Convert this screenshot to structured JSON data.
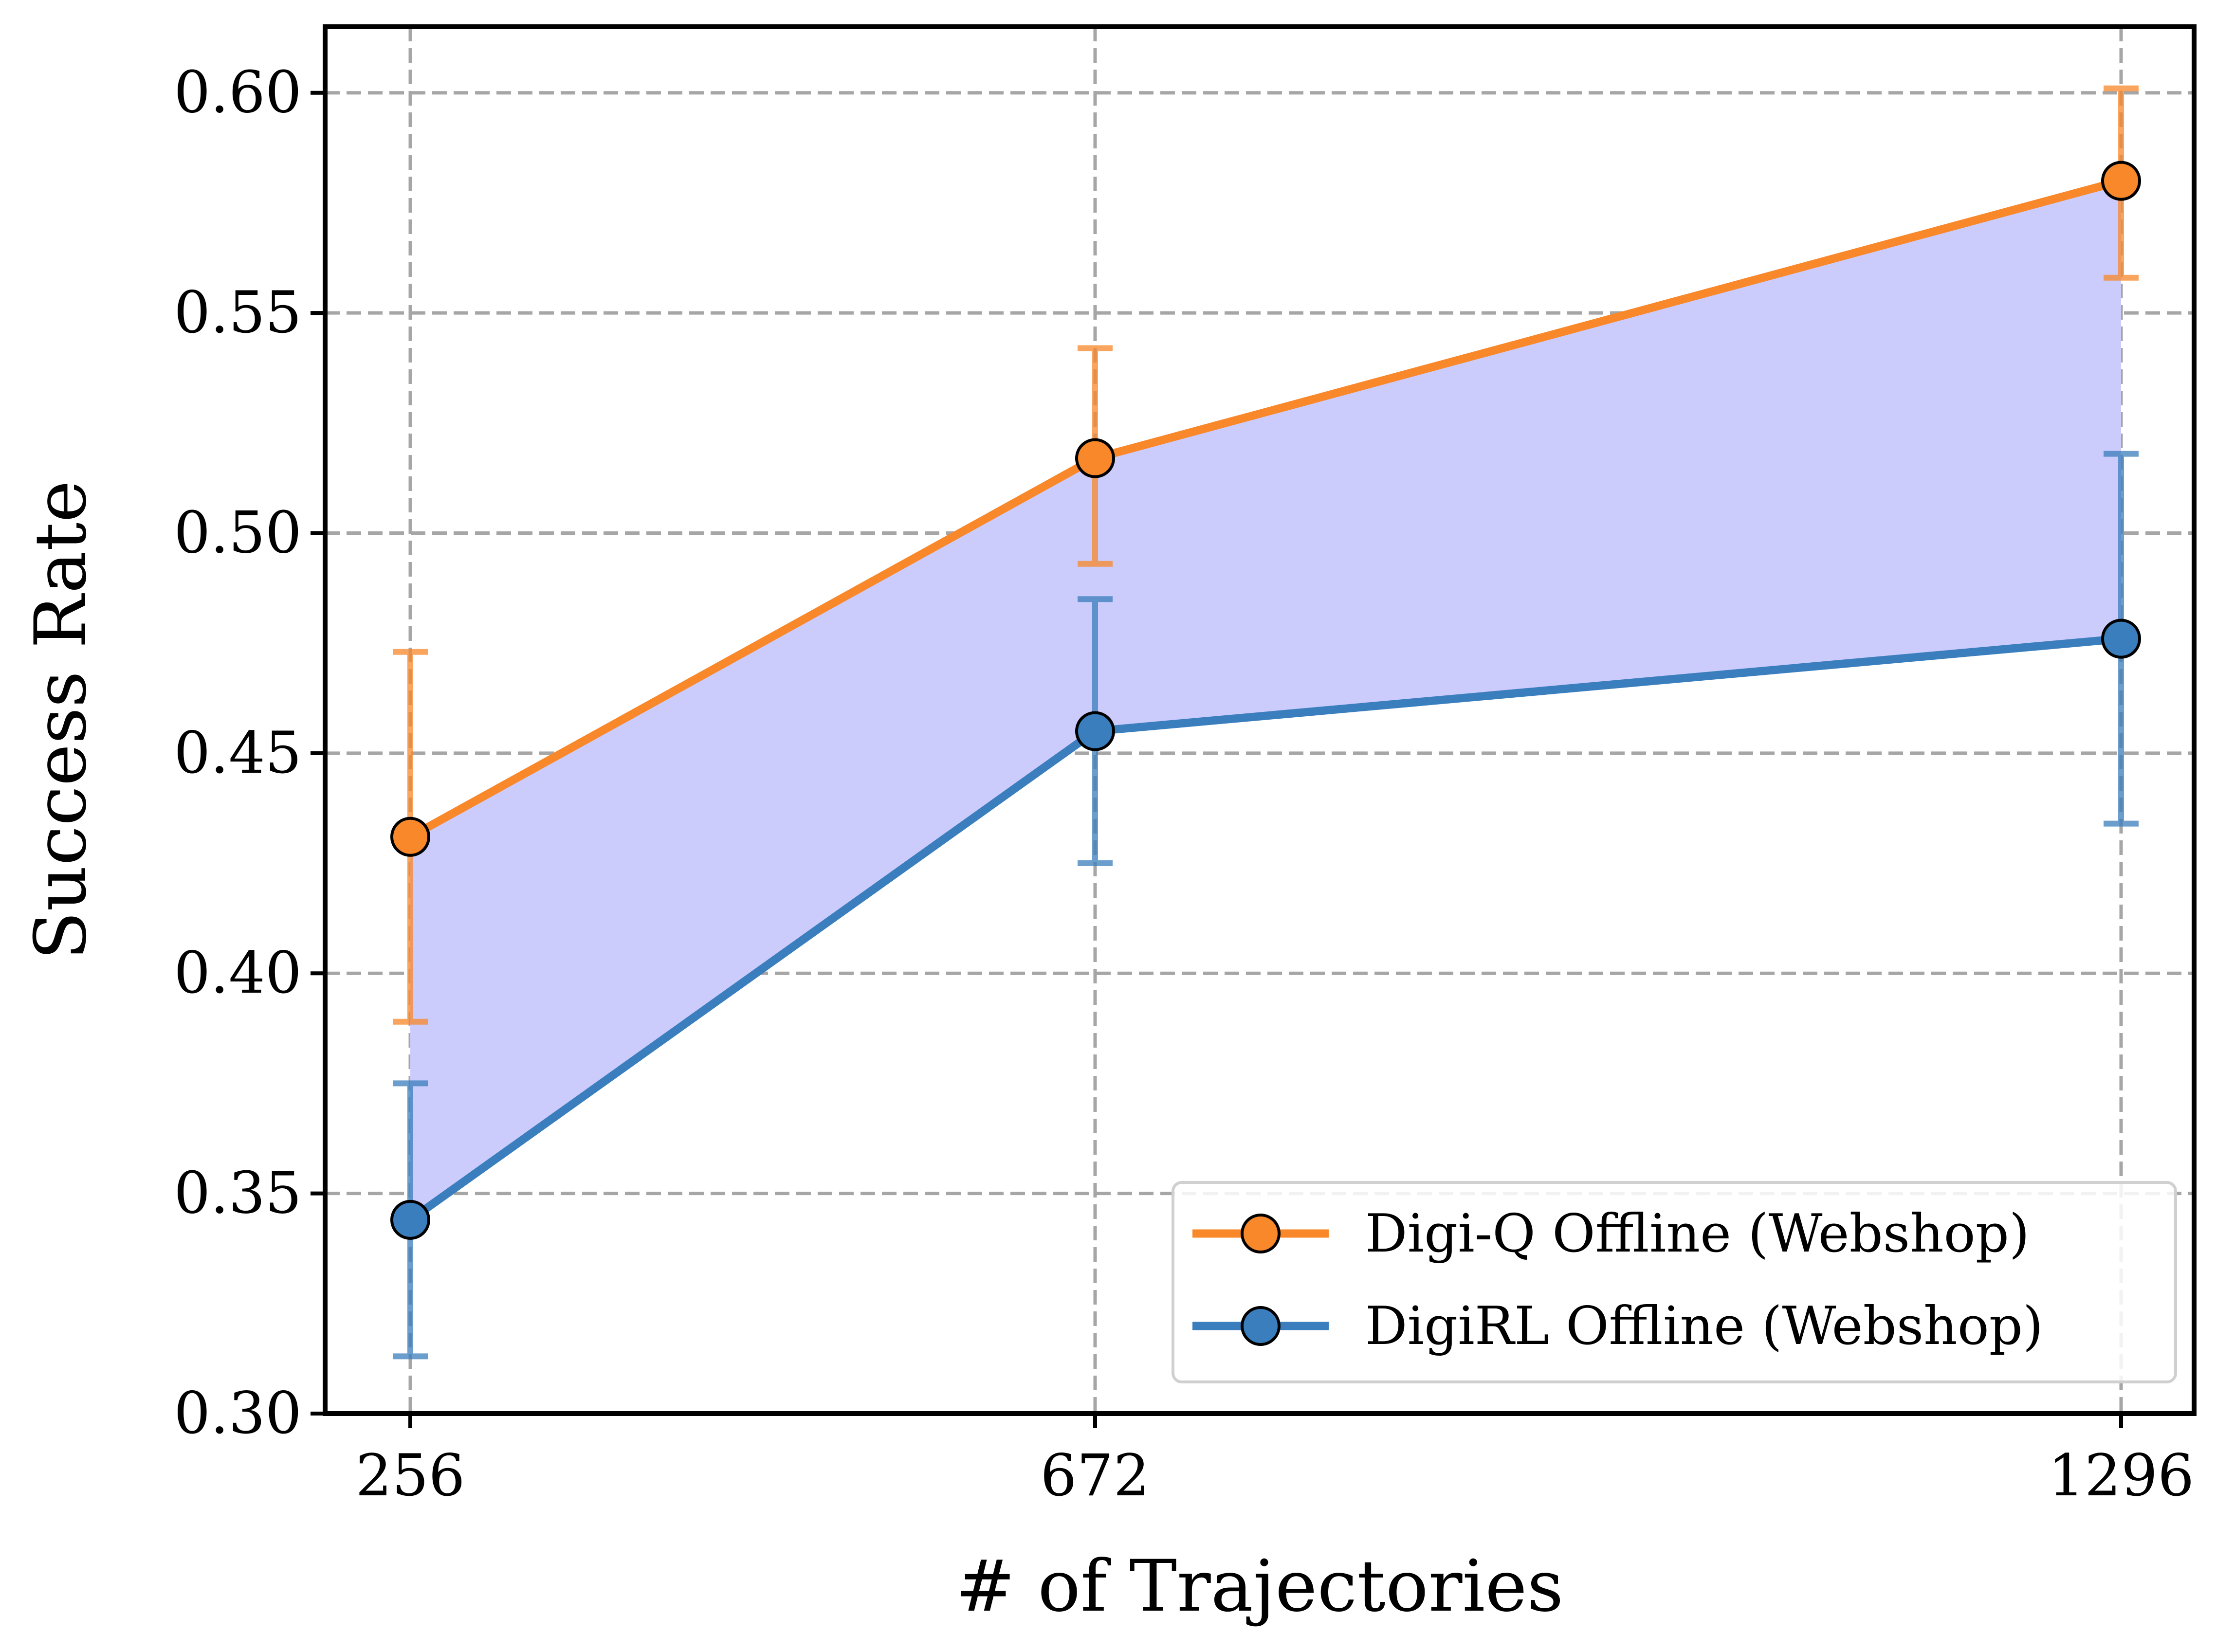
{
  "chart_data": {
    "type": "line",
    "title": "",
    "xlabel": "# of Trajectories",
    "ylabel": "Success Rate",
    "categories": [
      "256",
      "672",
      "1296"
    ],
    "ylim": [
      0.3,
      0.615
    ],
    "yticks": [
      "0.30",
      "0.35",
      "0.40",
      "0.45",
      "0.50",
      "0.55",
      "0.60"
    ],
    "grid": true,
    "legend_position": "lower-right",
    "fill_between_color": "#ccccfc",
    "series": [
      {
        "name": "Digi-Q Offline (Webshop)",
        "color": "#f8882a",
        "values": [
          0.431,
          0.517,
          0.58
        ],
        "err_low": [
          0.389,
          0.493,
          0.558
        ],
        "err_high": [
          0.473,
          0.542,
          0.601
        ]
      },
      {
        "name": "DigiRL Offline (Webshop)",
        "color": "#3a7ebd",
        "values": [
          0.344,
          0.455,
          0.476
        ],
        "err_low": [
          0.313,
          0.425,
          0.434
        ],
        "err_high": [
          0.375,
          0.485,
          0.518
        ]
      }
    ]
  }
}
